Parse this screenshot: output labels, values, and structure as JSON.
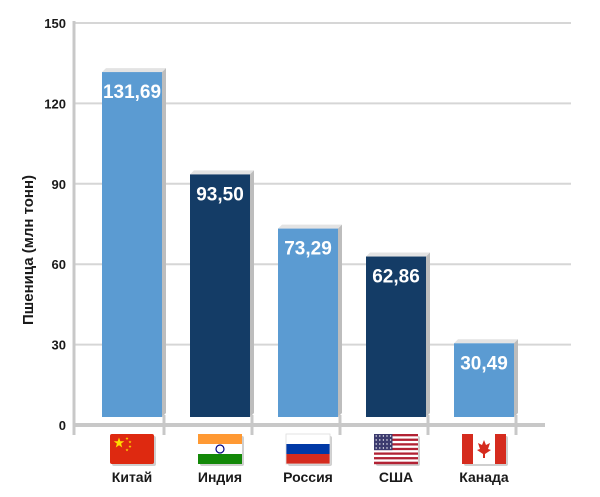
{
  "chart_data": {
    "type": "bar",
    "title": "",
    "xlabel": "",
    "ylabel": "Пшеница (млн тонн)",
    "ylim": [
      0,
      150
    ],
    "yticks": [
      0,
      30,
      60,
      90,
      120,
      150
    ],
    "grid": "horizontal",
    "categories": [
      "Китай",
      "Индия",
      "Россия",
      "США",
      "Канада"
    ],
    "values": [
      131.69,
      93.5,
      73.29,
      62.86,
      30.49
    ],
    "value_labels": [
      "131,69",
      "93,50",
      "73,29",
      "62,86",
      "30,49"
    ],
    "bar_colors": [
      "#5b9bd2",
      "#143c66",
      "#5b9bd2",
      "#143c66",
      "#5b9bd2"
    ],
    "flags": [
      "china-flag-icon",
      "india-flag-icon",
      "russia-flag-icon",
      "usa-flag-icon",
      "canada-flag-icon"
    ]
  }
}
